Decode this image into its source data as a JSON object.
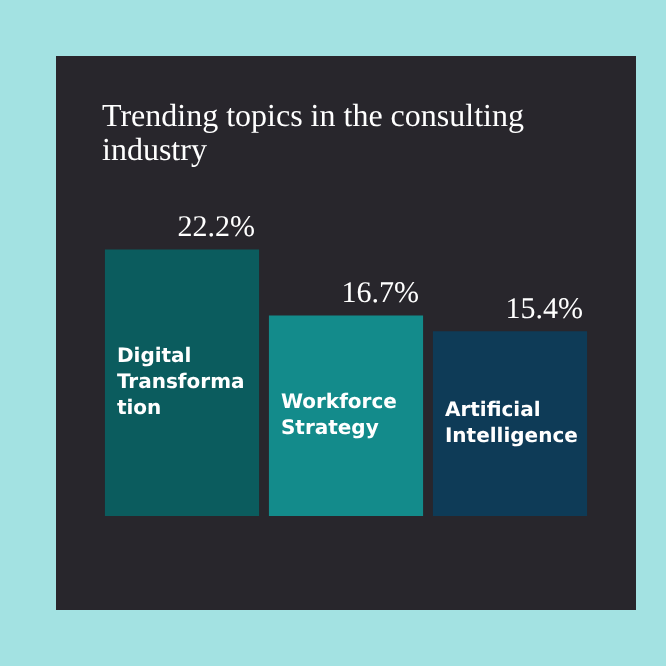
{
  "chart_data": {
    "type": "bar",
    "title": "Trending topics in the consulting industry",
    "categories": [
      "Digital Transformation",
      "Workforce Strategy",
      "Artificial Intelligence"
    ],
    "values": [
      22.2,
      16.7,
      15.4
    ],
    "value_labels": [
      "22.2%",
      "16.7%",
      "15.4%"
    ],
    "colors": [
      "#0b5c5e",
      "#138b8b",
      "#0e3b57"
    ]
  }
}
